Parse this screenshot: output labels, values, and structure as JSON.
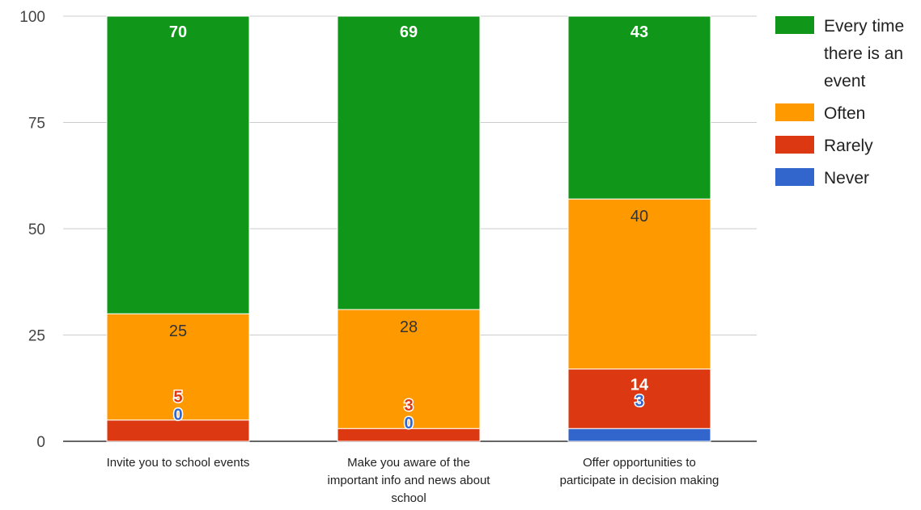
{
  "chart_data": {
    "type": "bar",
    "stacked": true,
    "title": "",
    "xlabel": "",
    "ylabel": "",
    "ylim": [
      0,
      100
    ],
    "yticks": [
      0,
      25,
      50,
      75,
      100
    ],
    "grid": true,
    "legend_position": "right",
    "categories": [
      [
        "Invite you to school events"
      ],
      [
        "Make you aware of the",
        "important info and news about",
        "school"
      ],
      [
        "Offer opportunities to",
        "participate in decision making"
      ]
    ],
    "series": [
      {
        "name": "Never",
        "color": "#3366cc",
        "values": [
          0,
          0,
          3
        ],
        "labels": [
          "0",
          "0",
          "3"
        ]
      },
      {
        "name": "Rarely",
        "color": "#dc3912",
        "values": [
          5,
          3,
          14
        ],
        "labels": [
          "5",
          "3",
          "14"
        ]
      },
      {
        "name": "Often",
        "color": "#ff9900",
        "values": [
          25,
          28,
          40
        ],
        "labels": [
          "25",
          "28",
          "40"
        ]
      },
      {
        "name": "Every time there is an event",
        "color": "#109618",
        "values": [
          70,
          69,
          43
        ],
        "labels": [
          "70",
          "69",
          "43"
        ]
      }
    ]
  },
  "legend": [
    {
      "label_lines": [
        "Every time",
        "there is an",
        "event"
      ],
      "color": "#109618"
    },
    {
      "label_lines": [
        "Often"
      ],
      "color": "#ff9900"
    },
    {
      "label_lines": [
        "Rarely"
      ],
      "color": "#dc3912"
    },
    {
      "label_lines": [
        "Never"
      ],
      "color": "#3366cc"
    }
  ]
}
